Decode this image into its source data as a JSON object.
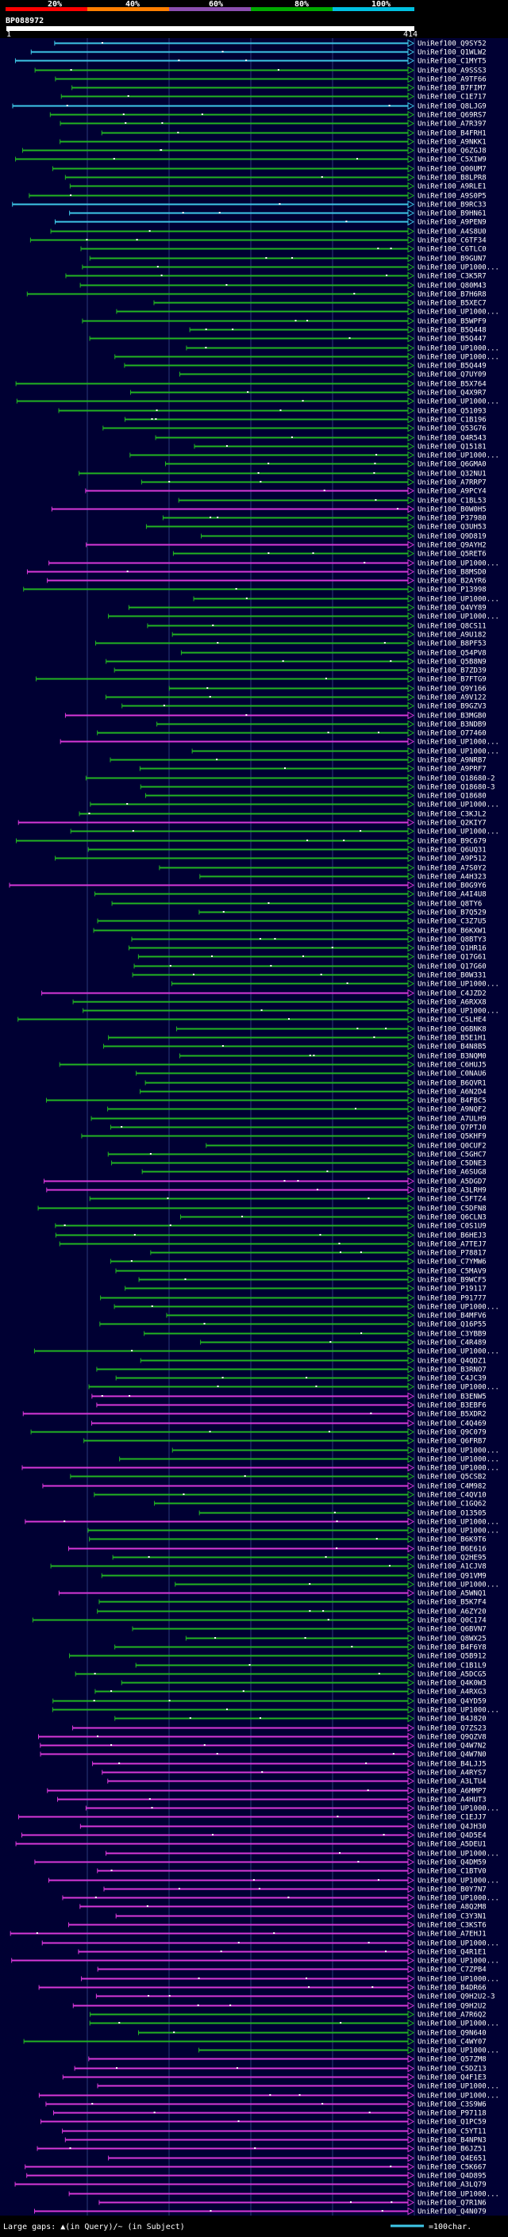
{
  "scale": {
    "ticks": [
      "20%",
      "40%",
      "60%",
      "80%",
      "100%"
    ],
    "segments": [
      {
        "color": "#ff0000"
      },
      {
        "color": "#ff7f00"
      },
      {
        "color": "#8b4fb0"
      },
      {
        "color": "#00aa00"
      },
      {
        "color": "#00c0e0"
      }
    ]
  },
  "query": {
    "id": "BP088972",
    "start": "1",
    "end": "414"
  },
  "colors": {
    "cyan": "#3ec8e8",
    "green": "#22b422",
    "magenta": "#d838d8",
    "gap": "#ffffff",
    "background": "#000033",
    "grid": "#2a3a7a"
  },
  "hits": [
    {
      "name": "UniRef100_Q9SY52",
      "color": "cyan"
    },
    {
      "name": "UniRef100_Q1WLW2",
      "color": "cyan"
    },
    {
      "name": "UniRef100_C1MYT5",
      "color": "cyan"
    },
    {
      "name": "UniRef100_A9SSS3",
      "color": "green"
    },
    {
      "name": "UniRef100_A9TF66",
      "color": "green"
    },
    {
      "name": "UniRef100_B7FIM7",
      "color": "green"
    },
    {
      "name": "UniRef100_C1E717",
      "color": "green"
    },
    {
      "name": "UniRef100_Q8LJG9",
      "color": "cyan"
    },
    {
      "name": "UniRef100_Q69RS7",
      "color": "green"
    },
    {
      "name": "UniRef100_A7R397",
      "color": "green"
    },
    {
      "name": "UniRef100_B4FRH1",
      "color": "green"
    },
    {
      "name": "UniRef100_A9NKK1",
      "color": "green"
    },
    {
      "name": "UniRef100_Q6ZGJ8",
      "color": "green"
    },
    {
      "name": "UniRef100_C5XIW9",
      "color": "green"
    },
    {
      "name": "UniRef100_Q00UM7",
      "color": "green"
    },
    {
      "name": "UniRef100_B8LPR8",
      "color": "green"
    },
    {
      "name": "UniRef100_A9RLE1",
      "color": "green"
    },
    {
      "name": "UniRef100_A9S0P5",
      "color": "green"
    },
    {
      "name": "UniRef100_B9RC33",
      "color": "cyan"
    },
    {
      "name": "UniRef100_B9HN61",
      "color": "cyan"
    },
    {
      "name": "UniRef100_A9PEN9",
      "color": "cyan"
    },
    {
      "name": "UniRef100_A4S8U0",
      "color": "green"
    },
    {
      "name": "UniRef100_C6TF34",
      "color": "green"
    },
    {
      "name": "UniRef100_C6TLC0",
      "color": "green"
    },
    {
      "name": "UniRef100_B9GUN7",
      "color": "green"
    },
    {
      "name": "UniRef100_UP1000...",
      "color": "green"
    },
    {
      "name": "UniRef100_C3K5R7",
      "color": "green"
    },
    {
      "name": "UniRef100_Q80M43",
      "color": "green"
    },
    {
      "name": "UniRef100_B7H6R8",
      "color": "green"
    },
    {
      "name": "UniRef100_B5XEC7",
      "color": "green"
    },
    {
      "name": "UniRef100_UP1000...",
      "color": "green"
    },
    {
      "name": "UniRef100_B5WPF9",
      "color": "green"
    },
    {
      "name": "UniRef100_B5Q448",
      "color": "green"
    },
    {
      "name": "UniRef100_B5Q447",
      "color": "green"
    },
    {
      "name": "UniRef100_UP1000...",
      "color": "green"
    },
    {
      "name": "UniRef100_UP1000...",
      "color": "green"
    },
    {
      "name": "UniRef100_B5Q449",
      "color": "green"
    },
    {
      "name": "UniRef100_Q7UY09",
      "color": "green"
    },
    {
      "name": "UniRef100_B5X764",
      "color": "green"
    },
    {
      "name": "UniRef100_Q4X9R7",
      "color": "green"
    },
    {
      "name": "UniRef100_UP1000...",
      "color": "green"
    },
    {
      "name": "UniRef100_Q51093",
      "color": "green"
    },
    {
      "name": "UniRef100_C1B196",
      "color": "green"
    },
    {
      "name": "UniRef100_Q53G76",
      "color": "green"
    },
    {
      "name": "UniRef100_Q4R543",
      "color": "green"
    },
    {
      "name": "UniRef100_Q15181",
      "color": "green"
    },
    {
      "name": "UniRef100_UP1000...",
      "color": "green"
    },
    {
      "name": "UniRef100_Q6GMA0",
      "color": "green"
    },
    {
      "name": "UniRef100_Q32NU1",
      "color": "green"
    },
    {
      "name": "UniRef100_A7RRP7",
      "color": "green"
    },
    {
      "name": "UniRef100_A9PCY4",
      "color": "magenta"
    },
    {
      "name": "UniRef100_C1BL53",
      "color": "green"
    },
    {
      "name": "UniRef100_B0W0H5",
      "color": "magenta"
    },
    {
      "name": "UniRef100_P37980",
      "color": "green"
    },
    {
      "name": "UniRef100_Q3UH53",
      "color": "green"
    },
    {
      "name": "UniRef100_Q9D819",
      "color": "green"
    },
    {
      "name": "UniRef100_Q9AYH2",
      "color": "magenta"
    },
    {
      "name": "UniRef100_Q5RET6",
      "color": "green"
    },
    {
      "name": "UniRef100_UP1000...",
      "color": "magenta"
    },
    {
      "name": "UniRef100_B8MSD0",
      "color": "magenta"
    },
    {
      "name": "UniRef100_B2AYR6",
      "color": "magenta"
    },
    {
      "name": "UniRef100_P13998",
      "color": "green"
    },
    {
      "name": "UniRef100_UP1000...",
      "color": "green"
    },
    {
      "name": "UniRef100_Q4VY89",
      "color": "green"
    },
    {
      "name": "UniRef100_UP1000...",
      "color": "green"
    },
    {
      "name": "UniRef100_Q8CS11",
      "color": "green"
    },
    {
      "name": "UniRef100_A9U182",
      "color": "green"
    },
    {
      "name": "UniRef100_B8PF53",
      "color": "green"
    },
    {
      "name": "UniRef100_Q54PV8",
      "color": "green"
    },
    {
      "name": "UniRef100_Q5B8N9",
      "color": "green"
    },
    {
      "name": "UniRef100_B7ZD39",
      "color": "green"
    },
    {
      "name": "UniRef100_B7FTG9",
      "color": "green"
    },
    {
      "name": "UniRef100_Q9Y166",
      "color": "green"
    },
    {
      "name": "UniRef100_A9V122",
      "color": "green"
    },
    {
      "name": "UniRef100_B9GZV3",
      "color": "green"
    },
    {
      "name": "UniRef100_B3MGB0",
      "color": "magenta"
    },
    {
      "name": "UniRef100_B3NDB9",
      "color": "green"
    },
    {
      "name": "UniRef100_O77460",
      "color": "green"
    },
    {
      "name": "UniRef100_UP1000...",
      "color": "magenta"
    },
    {
      "name": "UniRef100_UP1000...",
      "color": "green"
    },
    {
      "name": "UniRef100_A9NRB7",
      "color": "green"
    },
    {
      "name": "UniRef100_A9PRF7",
      "color": "green"
    },
    {
      "name": "UniRef100_Q18680-2",
      "color": "green"
    },
    {
      "name": "UniRef100_Q18680-3",
      "color": "green"
    },
    {
      "name": "UniRef100_Q18680",
      "color": "green"
    },
    {
      "name": "UniRef100_UP1000...",
      "color": "green"
    },
    {
      "name": "UniRef100_C3KJL2",
      "color": "green"
    },
    {
      "name": "UniRef100_Q2KIY7",
      "color": "magenta"
    },
    {
      "name": "UniRef100_UP1000...",
      "color": "green"
    },
    {
      "name": "UniRef100_B9C679",
      "color": "green"
    },
    {
      "name": "UniRef100_Q6UQ31",
      "color": "green"
    },
    {
      "name": "UniRef100_A9P512",
      "color": "green"
    },
    {
      "name": "UniRef100_A7S0Y2",
      "color": "green"
    },
    {
      "name": "UniRef100_A4H323",
      "color": "green"
    },
    {
      "name": "UniRef100_B0G9Y6",
      "color": "magenta"
    },
    {
      "name": "UniRef100_A4I4U8",
      "color": "green"
    },
    {
      "name": "UniRef100_Q8TY6",
      "color": "green"
    },
    {
      "name": "UniRef100_B7Q529",
      "color": "green"
    },
    {
      "name": "UniRef100_C3Z7U5",
      "color": "green"
    },
    {
      "name": "UniRef100_B6KXW1",
      "color": "green"
    },
    {
      "name": "UniRef100_Q8BTY3",
      "color": "green"
    },
    {
      "name": "UniRef100_Q1HR16",
      "color": "green"
    },
    {
      "name": "UniRef100_Q17G61",
      "color": "green"
    },
    {
      "name": "UniRef100_Q17G60",
      "color": "green"
    },
    {
      "name": "UniRef100_B0W331",
      "color": "green"
    },
    {
      "name": "UniRef100_UP1000...",
      "color": "green"
    },
    {
      "name": "UniRef100_C4JZD2",
      "color": "magenta"
    },
    {
      "name": "UniRef100_A6RXX8",
      "color": "green"
    },
    {
      "name": "UniRef100_UP1000...",
      "color": "green"
    },
    {
      "name": "UniRef100_C5LHE4",
      "color": "green"
    },
    {
      "name": "UniRef100_Q6BNK8",
      "color": "green"
    },
    {
      "name": "UniRef100_B5E1H1",
      "color": "green"
    },
    {
      "name": "UniRef100_B4N8B5",
      "color": "green"
    },
    {
      "name": "UniRef100_B3NQM0",
      "color": "green"
    },
    {
      "name": "UniRef100_C6HUJ5",
      "color": "green"
    },
    {
      "name": "UniRef100_C0NAU6",
      "color": "green"
    },
    {
      "name": "UniRef100_B6QVR1",
      "color": "green"
    },
    {
      "name": "UniRef100_A6N2D4",
      "color": "green"
    },
    {
      "name": "UniRef100_B4FBC5",
      "color": "green"
    },
    {
      "name": "UniRef100_A9NQF2",
      "color": "green"
    },
    {
      "name": "UniRef100_A7ULH9",
      "color": "green"
    },
    {
      "name": "UniRef100_Q7PTJ0",
      "color": "green"
    },
    {
      "name": "UniRef100_Q5KHF9",
      "color": "green"
    },
    {
      "name": "UniRef100_Q0CUF2",
      "color": "green"
    },
    {
      "name": "UniRef100_C5GHC7",
      "color": "green"
    },
    {
      "name": "UniRef100_C5DNE3",
      "color": "green"
    },
    {
      "name": "UniRef100_A6SUG8",
      "color": "green"
    },
    {
      "name": "UniRef100_A5DGD7",
      "color": "magenta"
    },
    {
      "name": "UniRef100_A3LRH9",
      "color": "magenta"
    },
    {
      "name": "UniRef100_C5FTZ4",
      "color": "green"
    },
    {
      "name": "UniRef100_C5DFN8",
      "color": "green"
    },
    {
      "name": "UniRef100_Q6CLN3",
      "color": "green"
    },
    {
      "name": "UniRef100_C0S1U9",
      "color": "green"
    },
    {
      "name": "UniRef100_B6HEJ3",
      "color": "green"
    },
    {
      "name": "UniRef100_A7TEJ7",
      "color": "green"
    },
    {
      "name": "UniRef100_P78817",
      "color": "green"
    },
    {
      "name": "UniRef100_C7YMW6",
      "color": "green"
    },
    {
      "name": "UniRef100_C5MAV9",
      "color": "green"
    },
    {
      "name": "UniRef100_B9WCF5",
      "color": "green"
    },
    {
      "name": "UniRef100_P19117",
      "color": "green"
    },
    {
      "name": "UniRef100_P91777",
      "color": "green"
    },
    {
      "name": "UniRef100_UP1000...",
      "color": "green"
    },
    {
      "name": "UniRef100_B4MFV6",
      "color": "green"
    },
    {
      "name": "UniRef100_Q16P55",
      "color": "green"
    },
    {
      "name": "UniRef100_C3YBB9",
      "color": "green"
    },
    {
      "name": "UniRef100_C4R489",
      "color": "green"
    },
    {
      "name": "UniRef100_UP1000...",
      "color": "green"
    },
    {
      "name": "UniRef100_Q4QDZ1",
      "color": "green"
    },
    {
      "name": "UniRef100_B3RNO7",
      "color": "green"
    },
    {
      "name": "UniRef100_C4JC39",
      "color": "green"
    },
    {
      "name": "UniRef100_UP1000...",
      "color": "green"
    },
    {
      "name": "UniRef100_B3ENW5",
      "color": "magenta"
    },
    {
      "name": "UniRef100_B3EBF6",
      "color": "magenta"
    },
    {
      "name": "UniRef100_B5XDR2",
      "color": "magenta"
    },
    {
      "name": "UniRef100_C4Q469",
      "color": "magenta"
    },
    {
      "name": "UniRef100_Q9C079",
      "color": "green"
    },
    {
      "name": "UniRef100_Q6FRB7",
      "color": "green"
    },
    {
      "name": "UniRef100_UP1000...",
      "color": "green"
    },
    {
      "name": "UniRef100_UP1000...",
      "color": "green"
    },
    {
      "name": "UniRef100_UP1000...",
      "color": "magenta"
    },
    {
      "name": "UniRef100_Q5CSB2",
      "color": "green"
    },
    {
      "name": "UniRef100_C4M982",
      "color": "magenta"
    },
    {
      "name": "UniRef100_C4QV10",
      "color": "green"
    },
    {
      "name": "UniRef100_C1GQ62",
      "color": "green"
    },
    {
      "name": "UniRef100_O13505",
      "color": "green"
    },
    {
      "name": "UniRef100_UP1000...",
      "color": "magenta"
    },
    {
      "name": "UniRef100_UP1000...",
      "color": "green"
    },
    {
      "name": "UniRef100_B6K9T6",
      "color": "green"
    },
    {
      "name": "UniRef100_B6E616",
      "color": "magenta"
    },
    {
      "name": "UniRef100_Q2HE95",
      "color": "green"
    },
    {
      "name": "UniRef100_A1CJV8",
      "color": "green"
    },
    {
      "name": "UniRef100_Q91VM9",
      "color": "green"
    },
    {
      "name": "UniRef100_UP1000...",
      "color": "green"
    },
    {
      "name": "UniRef100_A5WNQ1",
      "color": "magenta"
    },
    {
      "name": "UniRef100_B5K7F4",
      "color": "green"
    },
    {
      "name": "UniRef100_A6ZY20",
      "color": "green"
    },
    {
      "name": "UniRef100_Q0C174",
      "color": "green"
    },
    {
      "name": "UniRef100_Q6BVN7",
      "color": "green"
    },
    {
      "name": "UniRef100_Q8WX25",
      "color": "green"
    },
    {
      "name": "UniRef100_B4F6Y8",
      "color": "green"
    },
    {
      "name": "UniRef100_Q5B912",
      "color": "green"
    },
    {
      "name": "UniRef100_C1B1L9",
      "color": "green"
    },
    {
      "name": "UniRef100_A5DCG5",
      "color": "green"
    },
    {
      "name": "UniRef100_Q4K0W3",
      "color": "green"
    },
    {
      "name": "UniRef100_A4RXG3",
      "color": "green"
    },
    {
      "name": "UniRef100_Q4YD59",
      "color": "green"
    },
    {
      "name": "UniRef100_UP1000...",
      "color": "green"
    },
    {
      "name": "UniRef100_B4J820",
      "color": "green"
    },
    {
      "name": "UniRef100_Q7ZS23",
      "color": "magenta"
    },
    {
      "name": "UniRef100_Q9QZV8",
      "color": "magenta"
    },
    {
      "name": "UniRef100_Q4W7N2",
      "color": "magenta"
    },
    {
      "name": "UniRef100_Q4W7N0",
      "color": "magenta"
    },
    {
      "name": "UniRef100_B4LJJ5",
      "color": "magenta"
    },
    {
      "name": "UniRef100_A4RYS7",
      "color": "magenta"
    },
    {
      "name": "UniRef100_A3LTU4",
      "color": "magenta"
    },
    {
      "name": "UniRef100_A6MMP7",
      "color": "magenta"
    },
    {
      "name": "UniRef100_A4HUT3",
      "color": "magenta"
    },
    {
      "name": "UniRef100_UP1000...",
      "color": "magenta"
    },
    {
      "name": "UniRef100_C1EJJ7",
      "color": "magenta"
    },
    {
      "name": "UniRef100_Q4JH30",
      "color": "magenta"
    },
    {
      "name": "UniRef100_Q4D5E4",
      "color": "magenta"
    },
    {
      "name": "UniRef100_A5DEU1",
      "color": "magenta"
    },
    {
      "name": "UniRef100_UP1000...",
      "color": "magenta"
    },
    {
      "name": "UniRef100_Q4DM59",
      "color": "magenta"
    },
    {
      "name": "UniRef100_C1BTV0",
      "color": "magenta"
    },
    {
      "name": "UniRef100_UP1000...",
      "color": "magenta"
    },
    {
      "name": "UniRef100_B0Y7N7",
      "color": "magenta"
    },
    {
      "name": "UniRef100_UP1000...",
      "color": "magenta"
    },
    {
      "name": "UniRef100_A8Q2M8",
      "color": "magenta"
    },
    {
      "name": "UniRef100_C3Y3N1",
      "color": "magenta"
    },
    {
      "name": "UniRef100_C3KST6",
      "color": "magenta"
    },
    {
      "name": "UniRef100_A7EHJ1",
      "color": "magenta"
    },
    {
      "name": "UniRef100_UP1000...",
      "color": "magenta"
    },
    {
      "name": "UniRef100_Q4R1E1",
      "color": "magenta"
    },
    {
      "name": "UniRef100_UP1000...",
      "color": "magenta"
    },
    {
      "name": "UniRef100_C7ZPB4",
      "color": "magenta"
    },
    {
      "name": "UniRef100_UP1000...",
      "color": "magenta"
    },
    {
      "name": "UniRef100_B4DR66",
      "color": "magenta"
    },
    {
      "name": "UniRef100_Q9H2U2-3",
      "color": "magenta"
    },
    {
      "name": "UniRef100_Q9H2U2",
      "color": "magenta"
    },
    {
      "name": "UniRef100_A7R6Q2",
      "color": "green"
    },
    {
      "name": "UniRef100_UP1000...",
      "color": "green"
    },
    {
      "name": "UniRef100_Q9N640",
      "color": "green"
    },
    {
      "name": "UniRef100_C4WY07",
      "color": "green"
    },
    {
      "name": "UniRef100_UP1000...",
      "color": "green"
    },
    {
      "name": "UniRef100_Q57ZM8",
      "color": "magenta"
    },
    {
      "name": "UniRef100_C5DZ13",
      "color": "magenta"
    },
    {
      "name": "UniRef100_Q4F1E3",
      "color": "magenta"
    },
    {
      "name": "UniRef100_UP1000...",
      "color": "magenta"
    },
    {
      "name": "UniRef100_UP1000...",
      "color": "magenta"
    },
    {
      "name": "UniRef100_C3S9W6",
      "color": "magenta"
    },
    {
      "name": "UniRef100_P97118",
      "color": "magenta"
    },
    {
      "name": "UniRef100_Q1PC59",
      "color": "magenta"
    },
    {
      "name": "UniRef100_C5YT11",
      "color": "magenta"
    },
    {
      "name": "UniRef100_B4NPN3",
      "color": "magenta"
    },
    {
      "name": "UniRef100_B6JZ51",
      "color": "magenta"
    },
    {
      "name": "UniRef100_Q4E651",
      "color": "magenta"
    },
    {
      "name": "UniRef100_C5K667",
      "color": "magenta"
    },
    {
      "name": "UniRef100_Q4D895",
      "color": "magenta"
    },
    {
      "name": "UniRef100_A3LQ79",
      "color": "magenta"
    },
    {
      "name": "UniRef100_UP1000...",
      "color": "magenta"
    },
    {
      "name": "UniRef100_Q7R1N6",
      "color": "magenta"
    },
    {
      "name": "UniRef100_Q4N079",
      "color": "magenta"
    }
  ],
  "footer": {
    "left_text": "Large gaps: ▲(in Query)/~ (in Subject)",
    "right_text": "=100char."
  }
}
